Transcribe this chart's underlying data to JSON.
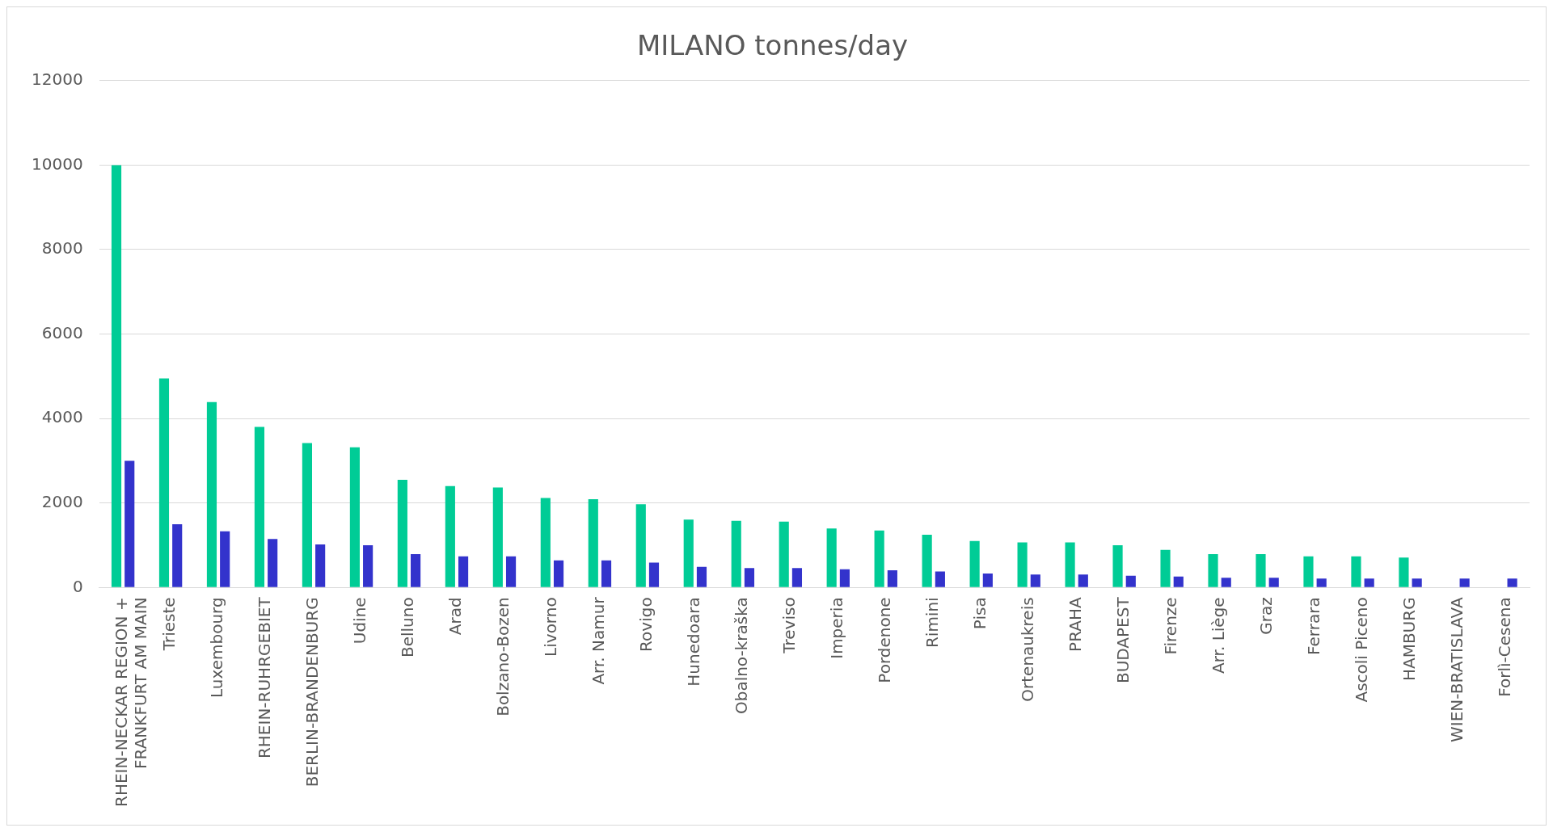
{
  "chart_data": {
    "type": "bar",
    "title": "MILANO tonnes/day",
    "categories": [
      "RHEIN-NECKAR REGION + FRANKFURT AM MAIN",
      "Trieste",
      "Luxembourg",
      "RHEIN-RUHRGEBIET",
      "BERLIN-BRANDENBURG",
      "Udine",
      "Belluno",
      "Arad",
      "Bolzano-Bozen",
      "Livorno",
      "Arr. Namur",
      "Rovigo",
      "Hunedoara",
      "Obalno-kraška",
      "Treviso",
      "Imperia",
      "Pordenone",
      "Rimini",
      "Pisa",
      "Ortenaukreis",
      "PRAHA",
      "BUDAPEST",
      "Firenze",
      "Arr. Liège",
      "Graz",
      "Ferrara",
      "Ascoli Piceno",
      "HAMBURG",
      "WIEN-BRATISLAVA",
      "Forlì-Cesena"
    ],
    "series": [
      {
        "color": "#00cc96",
        "values": [
          10000,
          4950,
          4390,
          3800,
          3420,
          3320,
          2550,
          2400,
          2370,
          2120,
          2090,
          1970,
          1610,
          1580,
          1560,
          1400,
          1350,
          1250,
          1100,
          1070,
          1070,
          1000,
          890,
          790,
          790,
          740,
          740,
          710,
          null,
          null
        ]
      },
      {
        "color": "#3333cc",
        "values": [
          3000,
          1500,
          1330,
          1150,
          1020,
          1000,
          790,
          740,
          740,
          640,
          640,
          590,
          490,
          460,
          460,
          430,
          410,
          380,
          330,
          310,
          310,
          280,
          260,
          230,
          230,
          210,
          210,
          210,
          210,
          210
        ]
      }
    ],
    "ylim": [
      0,
      12000
    ],
    "yticks": [
      0,
      2000,
      4000,
      6000,
      8000,
      10000,
      12000
    ],
    "grid": "y",
    "legend": false
  }
}
